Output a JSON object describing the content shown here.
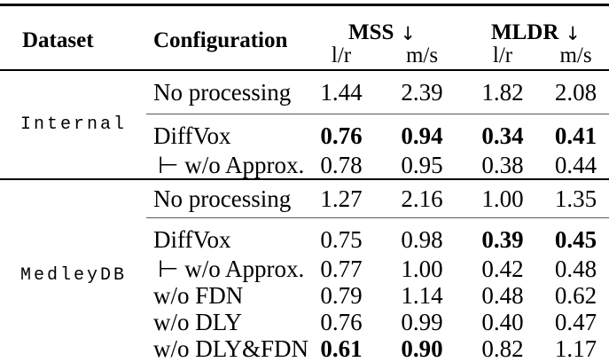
{
  "header": {
    "dataset": "Dataset",
    "configuration": "Configuration",
    "metric_groups": [
      {
        "label": "MSS",
        "arrow": "↓",
        "subs": [
          "l/r",
          "m/s"
        ]
      },
      {
        "label": "MLDR",
        "arrow": "↓",
        "subs": [
          "l/r",
          "m/s"
        ]
      }
    ]
  },
  "groups": [
    {
      "dataset": "Internal",
      "baseline": {
        "config": "No processing",
        "values": [
          "1.44",
          "2.39",
          "1.82",
          "2.08"
        ],
        "bold": [
          false,
          false,
          false,
          false
        ]
      },
      "rows": [
        {
          "config": "DiffVox",
          "values": [
            "0.76",
            "0.94",
            "0.34",
            "0.41"
          ],
          "bold": [
            true,
            true,
            true,
            true
          ]
        },
        {
          "config": "⊢ w/o Approx.",
          "values": [
            "0.78",
            "0.95",
            "0.38",
            "0.44"
          ],
          "bold": [
            false,
            false,
            false,
            false
          ]
        }
      ]
    },
    {
      "dataset": "MedleyDB",
      "baseline": {
        "config": "No processing",
        "values": [
          "1.27",
          "2.16",
          "1.00",
          "1.35"
        ],
        "bold": [
          false,
          false,
          false,
          false
        ]
      },
      "rows": [
        {
          "config": "DiffVox",
          "values": [
            "0.75",
            "0.98",
            "0.39",
            "0.45"
          ],
          "bold": [
            false,
            false,
            true,
            true
          ]
        },
        {
          "config": "⊢ w/o Approx.",
          "values": [
            "0.77",
            "1.00",
            "0.42",
            "0.48"
          ],
          "bold": [
            false,
            false,
            false,
            false
          ]
        },
        {
          "config": "w/o FDN",
          "values": [
            "0.79",
            "1.14",
            "0.48",
            "0.62"
          ],
          "bold": [
            false,
            false,
            false,
            false
          ]
        },
        {
          "config": "w/o DLY",
          "values": [
            "0.76",
            "0.99",
            "0.40",
            "0.47"
          ],
          "bold": [
            false,
            false,
            false,
            false
          ]
        },
        {
          "config": "w/o DLY&FDN",
          "values": [
            "0.61",
            "0.90",
            "0.82",
            "1.17"
          ],
          "bold": [
            true,
            true,
            false,
            false
          ]
        }
      ]
    }
  ],
  "colors": {
    "rule": "#000000",
    "light_rule": "#5a5a5a",
    "text": "#000000",
    "background": "#ffffff"
  }
}
